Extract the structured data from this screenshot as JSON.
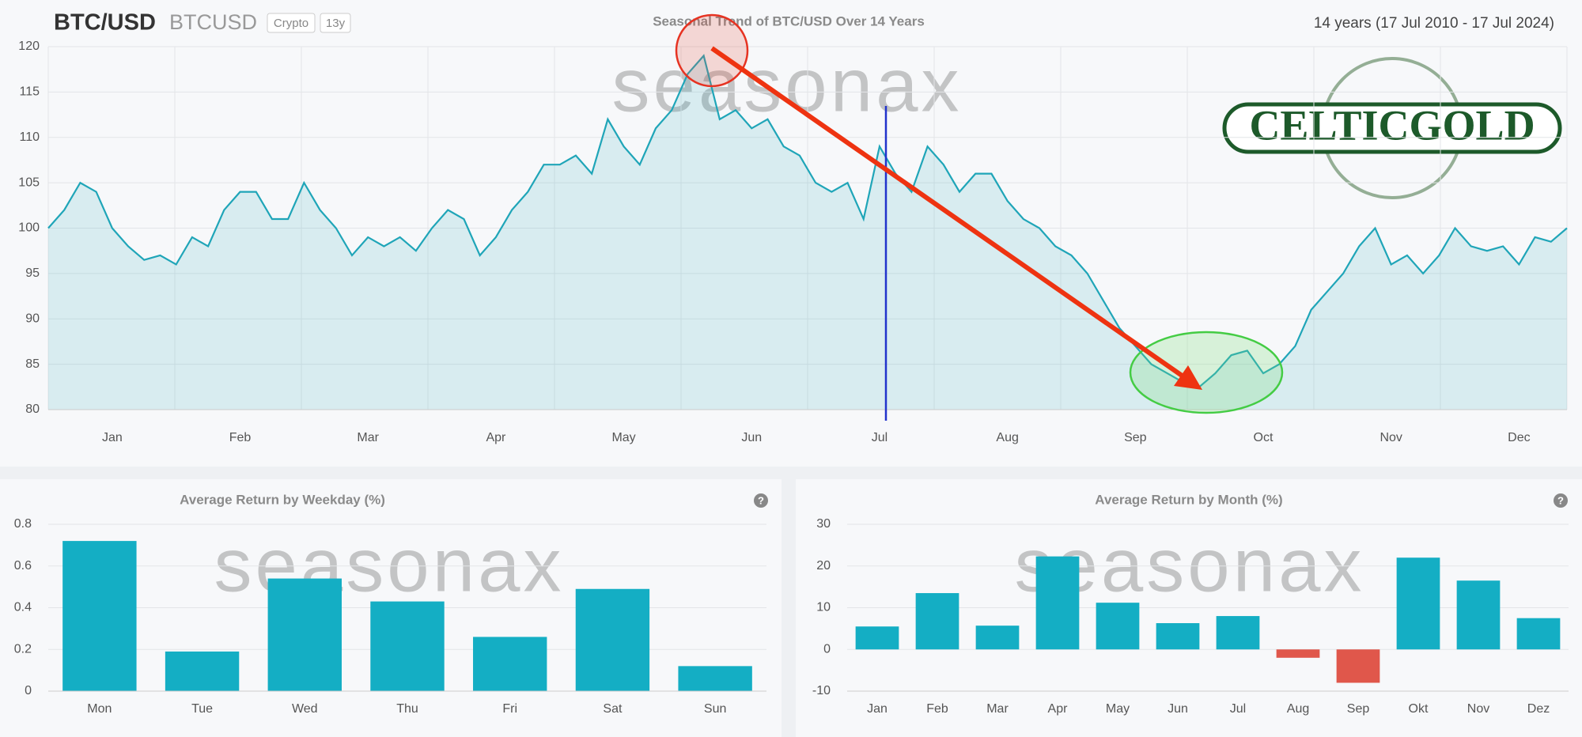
{
  "header": {
    "symbol": "BTC/USD",
    "ticker": "BTCUSD",
    "badges": [
      "Crypto",
      "13y"
    ],
    "range": "14 years (17 Jul 2010 - 17 Jul 2024)"
  },
  "watermark": "seasonax",
  "logo": "CELTICGOLD",
  "help_icon": "?",
  "chart_data": [
    {
      "type": "line",
      "title": "Seasonal Trend of BTC/USD Over 14 Years",
      "categories": [
        null,
        null,
        null,
        null,
        "Jan",
        null,
        null,
        null,
        null,
        null,
        null,
        null,
        "Feb",
        null,
        null,
        null,
        null,
        null,
        null,
        null,
        "Mar",
        null,
        null,
        null,
        null,
        null,
        null,
        null,
        "Apr",
        null,
        null,
        null,
        null,
        null,
        null,
        null,
        "May",
        null,
        null,
        null,
        null,
        null,
        null,
        null,
        "Jun",
        null,
        null,
        null,
        null,
        null,
        null,
        null,
        "Jul",
        null,
        null,
        null,
        null,
        null,
        null,
        null,
        "Aug",
        null,
        null,
        null,
        null,
        null,
        null,
        null,
        "Sep",
        null,
        null,
        null,
        null,
        null,
        null,
        null,
        "Oct",
        null,
        null,
        null,
        null,
        null,
        null,
        null,
        "Nov",
        null,
        null,
        null,
        null,
        null,
        null,
        null,
        "Dec",
        null,
        null,
        null
      ],
      "values": [
        100,
        102,
        105,
        104,
        100,
        98,
        96.5,
        97,
        96,
        99,
        98,
        102,
        104,
        104,
        101,
        101,
        105,
        102,
        100,
        97,
        99,
        98,
        99,
        97.5,
        100,
        102,
        101,
        97,
        99,
        102,
        104,
        107,
        107,
        108,
        106,
        112,
        109,
        107,
        111,
        113,
        117,
        119,
        112,
        113,
        111,
        112,
        109,
        108,
        105,
        104,
        105,
        101,
        109,
        106,
        104,
        109,
        107,
        104,
        106,
        106,
        103,
        101,
        100,
        98,
        97,
        95,
        92,
        89,
        87,
        85,
        84,
        83,
        82.5,
        84,
        86,
        86.5,
        84,
        85,
        87,
        91,
        93,
        95,
        98,
        100,
        96,
        97,
        95,
        97,
        100,
        98,
        97.5,
        98,
        96,
        99,
        98.5,
        100
      ],
      "color": "#1fa5b8",
      "ylim": [
        80,
        120
      ],
      "yticks": [
        80,
        85,
        90,
        95,
        100,
        105,
        110,
        115,
        120
      ],
      "grid": true
    },
    {
      "type": "bar",
      "title": "Average Return by Weekday (%)",
      "categories": [
        "Mon",
        "Tue",
        "Wed",
        "Thu",
        "Fri",
        "Sat",
        "Sun"
      ],
      "values": [
        0.72,
        0.19,
        0.54,
        0.43,
        0.26,
        0.49,
        0.12
      ],
      "color": "#14aec4",
      "negative_color": "#e0574b",
      "ylim": [
        0,
        0.8
      ],
      "yticks": [
        0,
        0.2,
        0.4,
        0.6,
        0.8
      ],
      "grid": true
    },
    {
      "type": "bar",
      "title": "Average Return by Month (%)",
      "categories": [
        "Jan",
        "Feb",
        "Mar",
        "Apr",
        "May",
        "Jun",
        "Jul",
        "Aug",
        "Sep",
        "Okt",
        "Nov",
        "Dez"
      ],
      "values": [
        5.5,
        13.5,
        5.7,
        22.3,
        11.2,
        6.3,
        8,
        -2,
        -8,
        22,
        16.5,
        7.5
      ],
      "color": "#14aec4",
      "negative_color": "#e0574b",
      "ylim": [
        -10,
        30
      ],
      "yticks": [
        -10,
        0,
        10,
        20,
        30
      ],
      "grid": true
    }
  ]
}
